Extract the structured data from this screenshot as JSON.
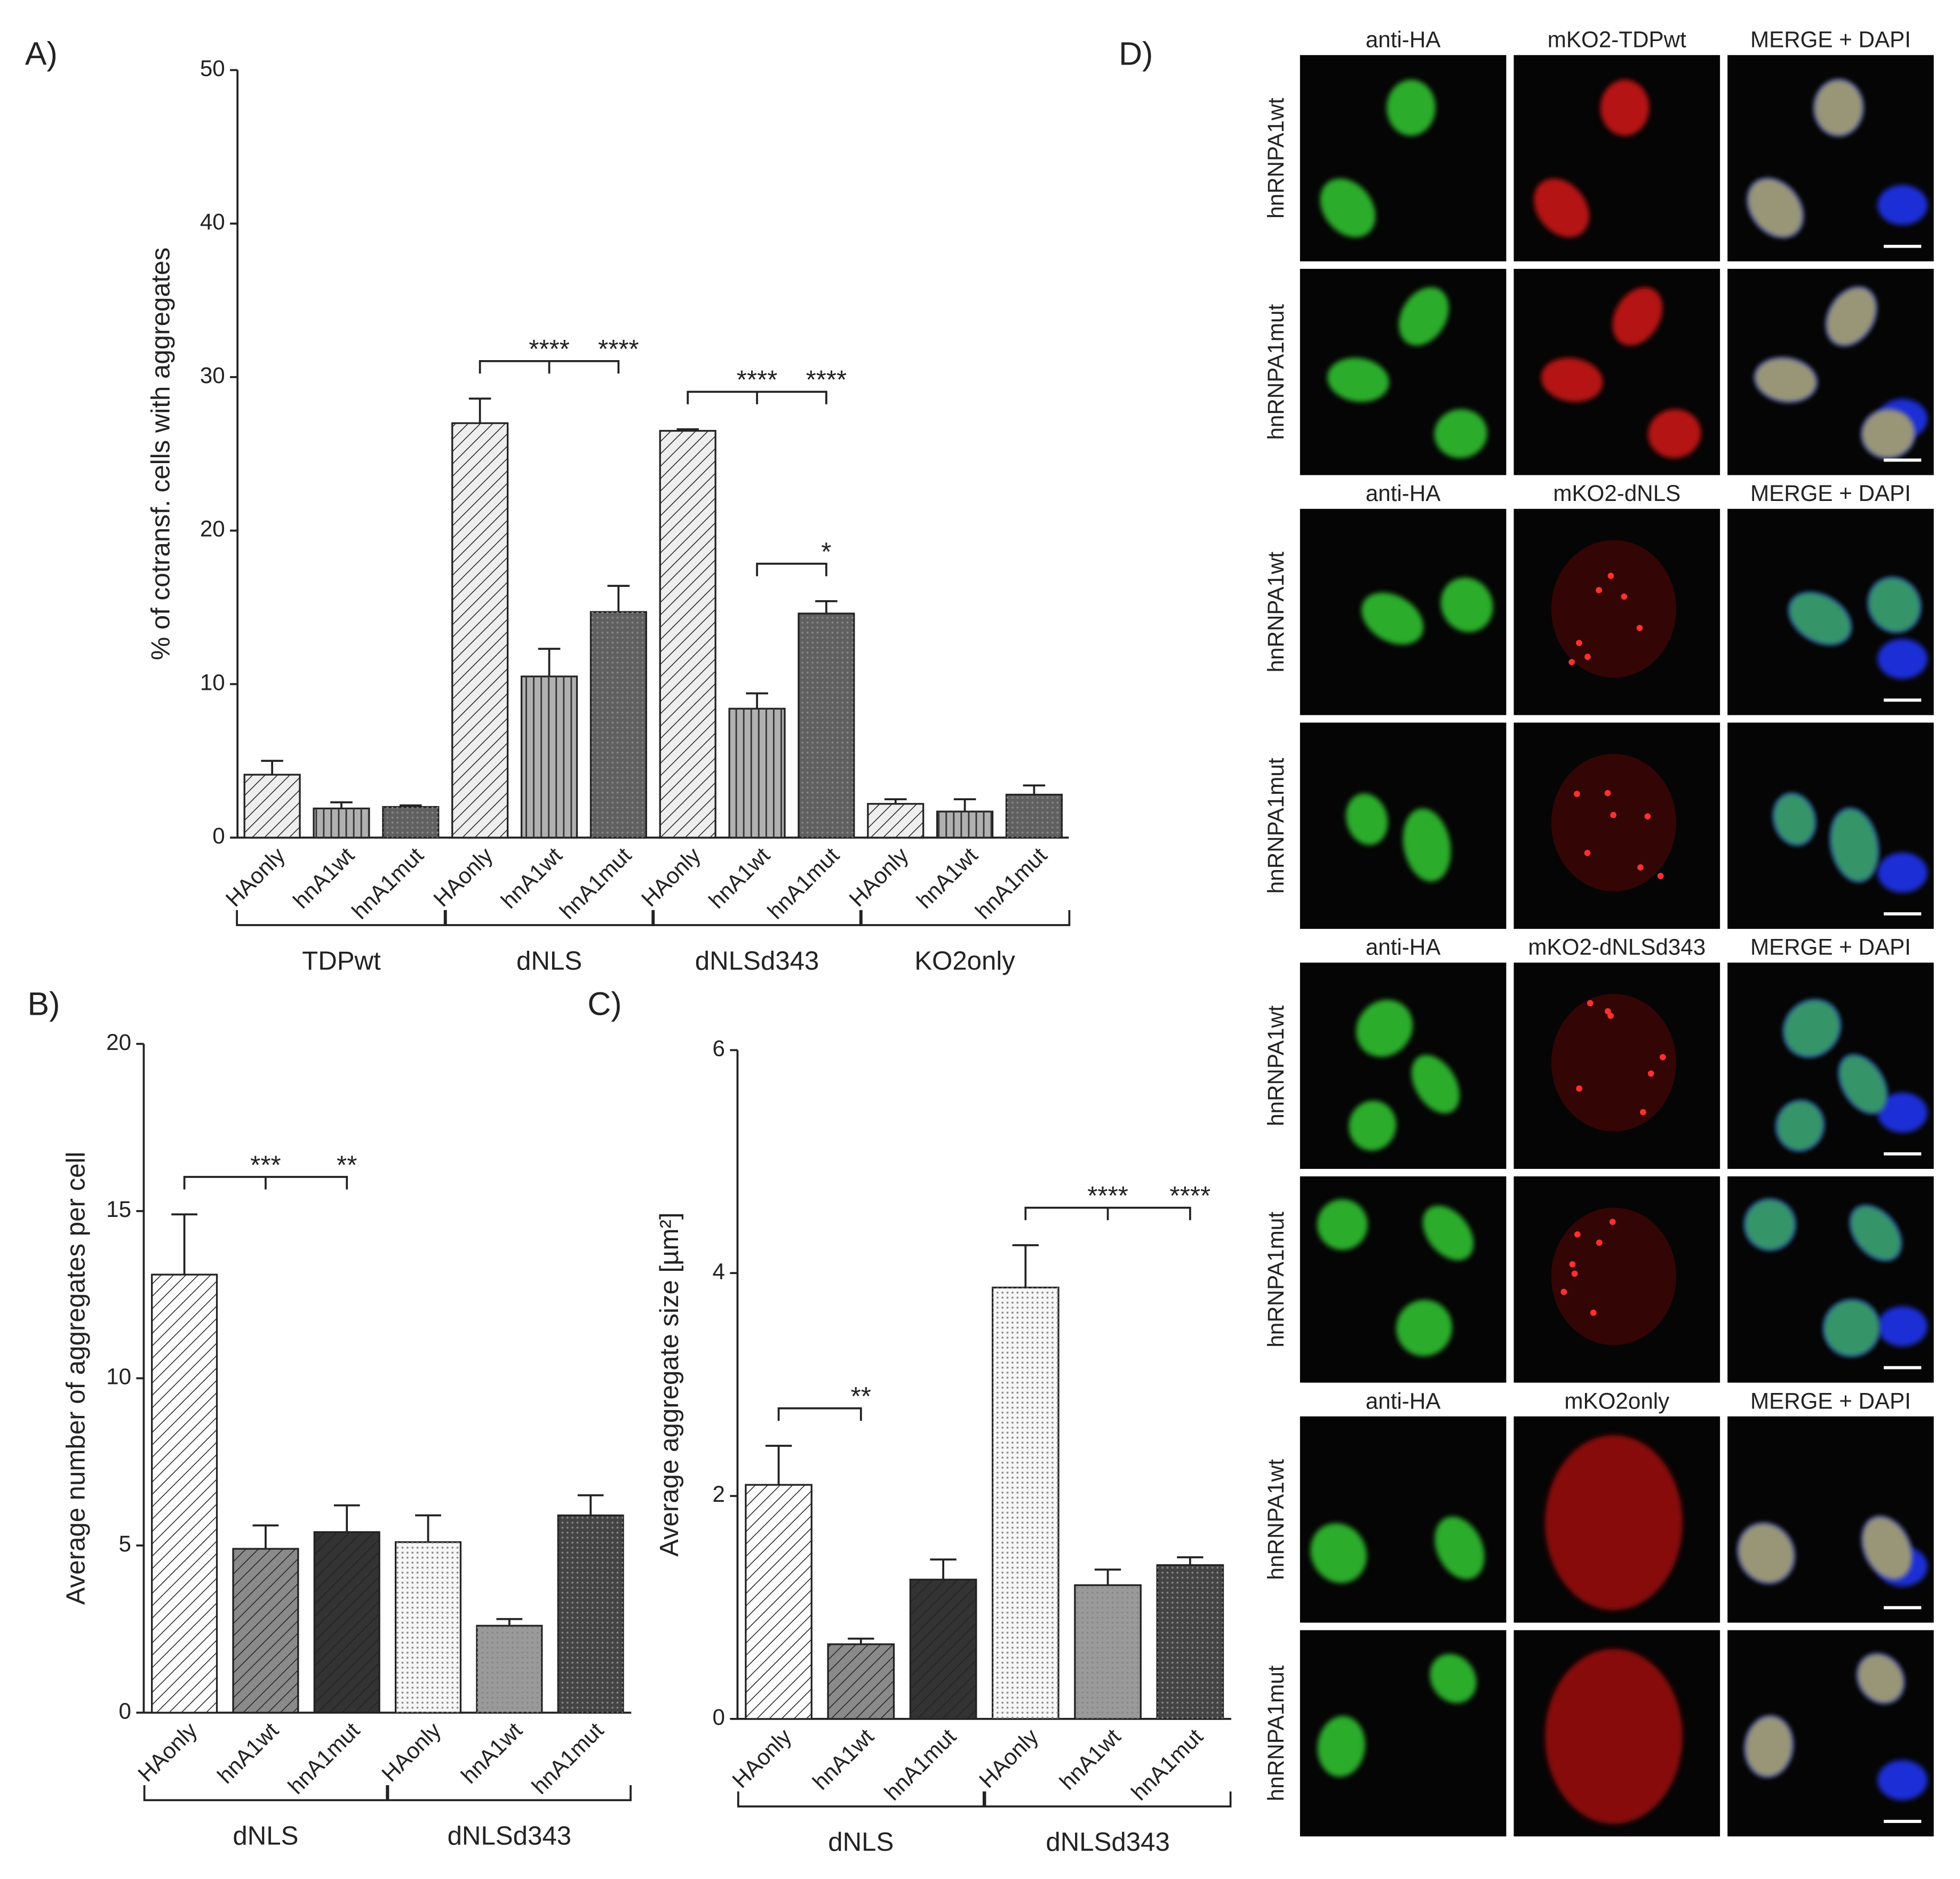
{
  "chart_data": [
    {
      "type": "bar",
      "panel": "A)",
      "ylabel": "% of cotransf. cells with aggregates",
      "categories": [
        "HAonly",
        "hnA1wt",
        "hnA1mut",
        "HAonly",
        "hnA1wt",
        "hnA1mut",
        "HAonly",
        "hnA1wt",
        "hnA1mut",
        "HAonly",
        "hnA1wt",
        "hnA1mut"
      ],
      "values": [
        4.1,
        1.9,
        2.0,
        27.0,
        10.5,
        14.7,
        26.5,
        8.4,
        14.6,
        2.2,
        1.7,
        2.8
      ],
      "errors": [
        0.9,
        0.4,
        0.1,
        1.6,
        1.8,
        1.7,
        0.1,
        1.0,
        0.8,
        0.3,
        0.8,
        0.6
      ],
      "colors": [
        "#eeeeee",
        "#b0b0b0",
        "#606060",
        "#eeeeee",
        "#b0b0b0",
        "#606060",
        "#eeeeee",
        "#b0b0b0",
        "#606060",
        "#eeeeee",
        "#b0b0b0",
        "#606060"
      ],
      "groups": [
        "TDPwt",
        "dNLS",
        "dNLSd343",
        "KO2only"
      ],
      "ylim": [
        0,
        50
      ],
      "yticks": [
        0,
        10,
        20,
        30,
        40,
        50
      ],
      "annotations": [
        {
          "from": 3,
          "to": [
            4,
            5
          ],
          "labels": [
            "****",
            "****"
          ]
        },
        {
          "from": 6,
          "to": [
            7,
            8
          ],
          "labels": [
            "****",
            "****"
          ]
        },
        {
          "from": 7,
          "to": [
            8
          ],
          "labels": [
            "*"
          ]
        }
      ]
    },
    {
      "type": "bar",
      "panel": "B)",
      "ylabel": "Average number of aggregates per cell",
      "categories": [
        "HAonly",
        "hnA1wt",
        "hnA1mut",
        "HAonly",
        "hnA1wt",
        "hnA1mut"
      ],
      "values": [
        13.1,
        4.9,
        5.4,
        5.1,
        2.6,
        5.9
      ],
      "errors": [
        1.8,
        0.7,
        0.8,
        0.8,
        0.2,
        0.6
      ],
      "colors": [
        "#ffffff",
        "#8a8a8a",
        "#333333",
        "#f6f6f6",
        "#9a9a9a",
        "#444444"
      ],
      "groups": [
        "dNLS",
        "dNLSd343"
      ],
      "ylim": [
        0,
        20
      ],
      "yticks": [
        0,
        5,
        10,
        15,
        20
      ],
      "annotations": [
        {
          "from": 0,
          "to": [
            1,
            2
          ],
          "labels": [
            "***",
            "**"
          ]
        }
      ]
    },
    {
      "type": "bar",
      "panel": "C)",
      "ylabel": "Average aggregate size [µm²]",
      "categories": [
        "HAonly",
        "hnA1wt",
        "hnA1mut",
        "HAonly",
        "hnA1wt",
        "hnA1mut"
      ],
      "values": [
        2.1,
        0.67,
        1.25,
        3.87,
        1.2,
        1.38
      ],
      "errors": [
        0.35,
        0.05,
        0.18,
        0.38,
        0.14,
        0.07
      ],
      "colors": [
        "#ffffff",
        "#8a8a8a",
        "#333333",
        "#f6f6f6",
        "#9a9a9a",
        "#444444"
      ],
      "groups": [
        "dNLS",
        "dNLSd343"
      ],
      "ylim": [
        0,
        6
      ],
      "yticks": [
        0,
        2,
        4,
        6
      ],
      "annotations": [
        {
          "from": 0,
          "to": [
            1
          ],
          "labels": [
            "**"
          ]
        },
        {
          "from": 3,
          "to": [
            4,
            5
          ],
          "labels": [
            "****",
            "****"
          ]
        }
      ]
    }
  ],
  "panel_d": {
    "label": "D)",
    "blocks": [
      {
        "headers": [
          "anti-HA",
          "mKO2-TDPwt",
          "MERGE + DAPI"
        ],
        "rows": [
          "hnRNPA1wt",
          "hnRNPA1mut"
        ]
      },
      {
        "headers": [
          "anti-HA",
          "mKO2-dNLS",
          "MERGE + DAPI"
        ],
        "rows": [
          "hnRNPA1wt",
          "hnRNPA1mut"
        ]
      },
      {
        "headers": [
          "anti-HA",
          "mKO2-dNLSd343",
          "MERGE + DAPI"
        ],
        "rows": [
          "hnRNPA1wt",
          "hnRNPA1mut"
        ]
      },
      {
        "headers": [
          "anti-HA",
          "mKO2only",
          "MERGE + DAPI"
        ],
        "rows": [
          "hnRNPA1wt",
          "hnRNPA1mut"
        ]
      }
    ]
  }
}
